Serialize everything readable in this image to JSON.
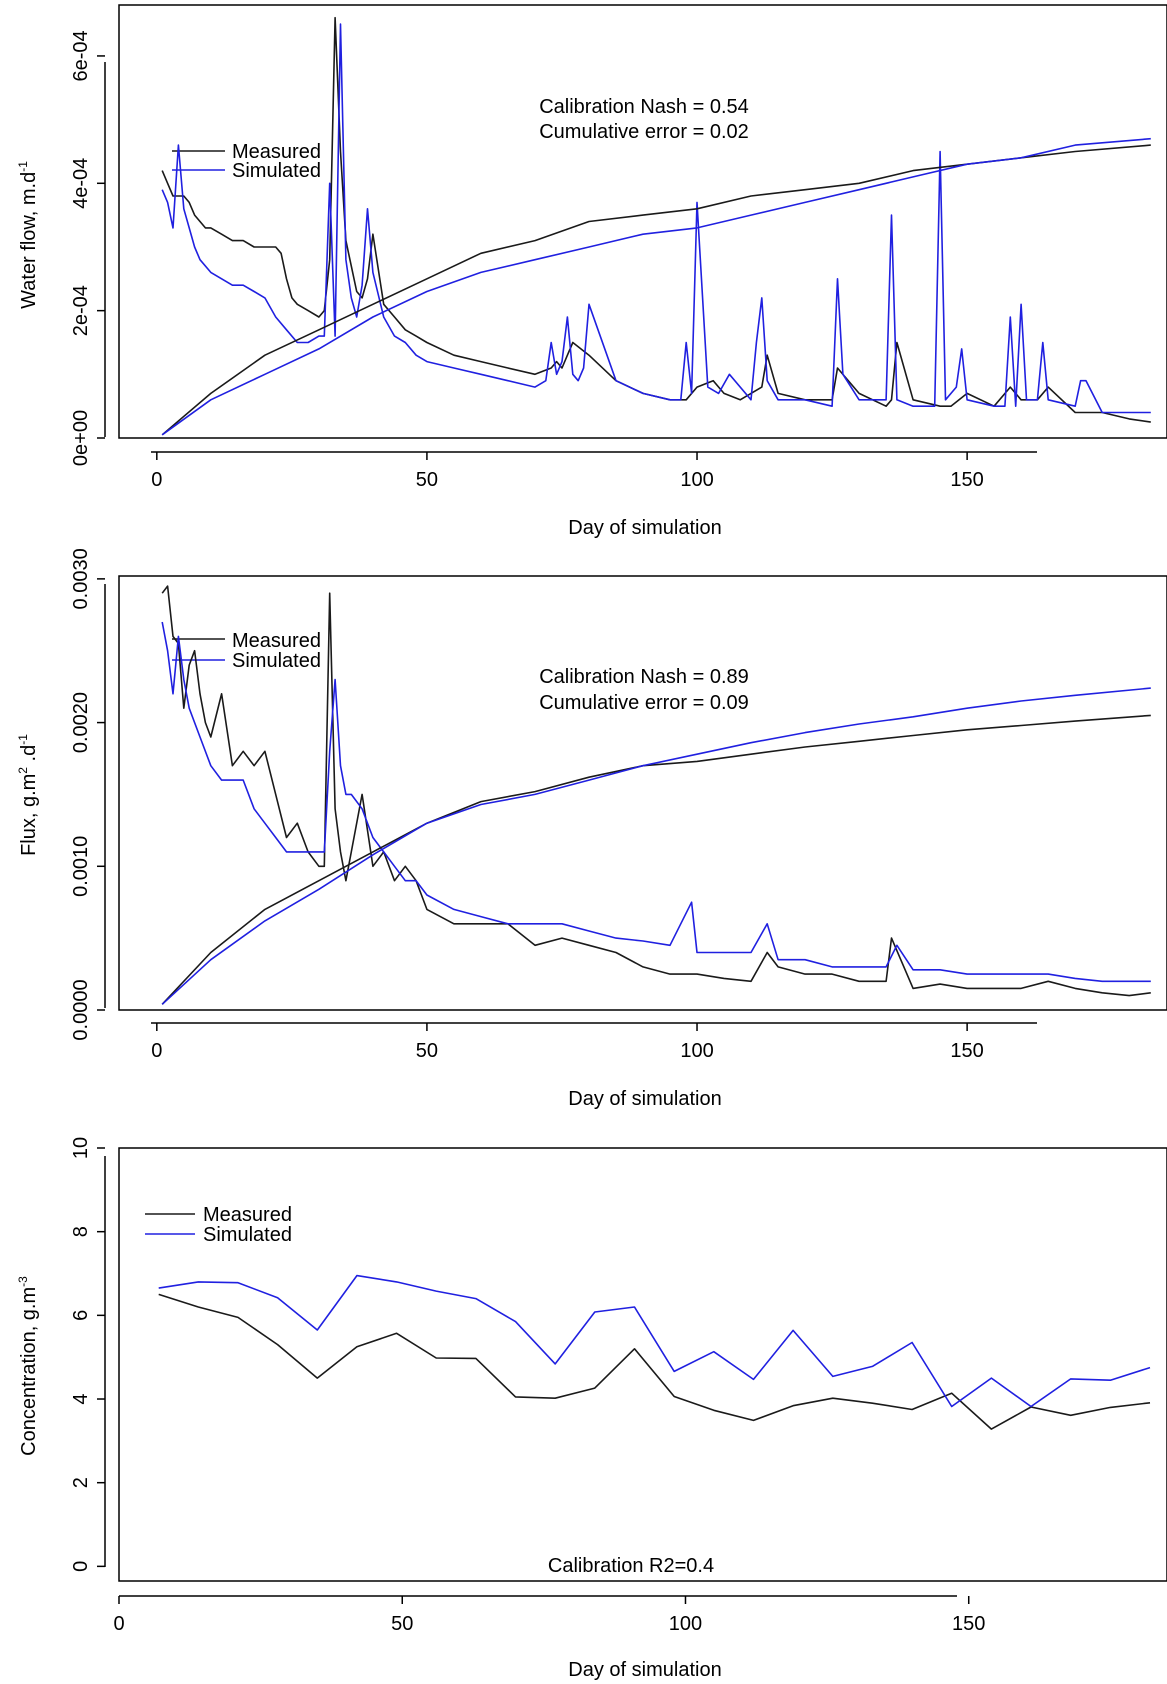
{
  "chart_data": [
    {
      "type": "line",
      "xlabel": "Day of simulation",
      "ylabel": "Water flow, m.d",
      "ylabel_sup": "-1",
      "xticks": [
        "0",
        "50",
        "100",
        "150"
      ],
      "yticks": [
        "0e+00",
        "2e-04",
        "4e-04",
        "6e-04"
      ],
      "xlim": [
        -7,
        187
      ],
      "ylim": [
        0,
        0.00068
      ],
      "legend": [
        "Measured",
        "Simulated"
      ],
      "annotation": [
        "Calibration Nash = 0.54",
        "Cumulative error = 0.02"
      ],
      "colors": {
        "measured": "#1a1a1a",
        "simulated": "#2020e0"
      },
      "series": [
        {
          "name": "Measured",
          "x": [
            1,
            2,
            3,
            4,
            5,
            6,
            7,
            8,
            9,
            10,
            12,
            14,
            16,
            18,
            20,
            22,
            23,
            24,
            25,
            26,
            28,
            30,
            31,
            32,
            33,
            34,
            35,
            36,
            37,
            38,
            39,
            40,
            42,
            44,
            46,
            48,
            50,
            55,
            60,
            65,
            70,
            73,
            74,
            75,
            76,
            77,
            80,
            85,
            90,
            95,
            98,
            100,
            103,
            105,
            108,
            110,
            112,
            113,
            115,
            120,
            125,
            126,
            130,
            135,
            136,
            137,
            140,
            145,
            147,
            150,
            155,
            158,
            160,
            163,
            165,
            170,
            175,
            180,
            184
          ],
          "y": [
            0.00042,
            0.0004,
            0.00038,
            0.00038,
            0.00038,
            0.00037,
            0.00035,
            0.00034,
            0.00033,
            0.00033,
            0.00032,
            0.00031,
            0.00031,
            0.0003,
            0.0003,
            0.0003,
            0.00029,
            0.00025,
            0.00022,
            0.00021,
            0.0002,
            0.00019,
            0.0002,
            0.00028,
            0.00066,
            0.00045,
            0.00031,
            0.00027,
            0.00023,
            0.00022,
            0.00025,
            0.00032,
            0.00021,
            0.00019,
            0.00017,
            0.00016,
            0.00015,
            0.00013,
            0.00012,
            0.00011,
            0.0001,
            0.00011,
            0.00012,
            0.00011,
            0.00013,
            0.00015,
            0.00013,
            9e-05,
            7e-05,
            6e-05,
            6e-05,
            8e-05,
            9e-05,
            7e-05,
            6e-05,
            7e-05,
            8e-05,
            0.00013,
            7e-05,
            6e-05,
            6e-05,
            0.00011,
            7e-05,
            5e-05,
            6e-05,
            0.00015,
            6e-05,
            5e-05,
            5e-05,
            7e-05,
            5e-05,
            8e-05,
            6e-05,
            6e-05,
            8e-05,
            4e-05,
            4e-05,
            3e-05,
            2.5e-05
          ]
        },
        {
          "name": "Simulated",
          "x": [
            1,
            2,
            3,
            4,
            5,
            6,
            7,
            8,
            10,
            12,
            14,
            16,
            18,
            20,
            22,
            24,
            26,
            28,
            30,
            31,
            32,
            33,
            34,
            35,
            36,
            37,
            38,
            39,
            40,
            42,
            44,
            46,
            48,
            50,
            55,
            60,
            65,
            70,
            72,
            73,
            74,
            75,
            76,
            77,
            78,
            79,
            80,
            85,
            90,
            95,
            97,
            98,
            99,
            100,
            102,
            104,
            106,
            110,
            111,
            112,
            113,
            115,
            120,
            125,
            126,
            127,
            130,
            135,
            136,
            137,
            140,
            144,
            145,
            146,
            148,
            149,
            150,
            155,
            157,
            158,
            159,
            160,
            161,
            163,
            164,
            165,
            170,
            171,
            172,
            175,
            180,
            184
          ],
          "y": [
            0.00039,
            0.00037,
            0.00033,
            0.00046,
            0.00036,
            0.00033,
            0.0003,
            0.00028,
            0.00026,
            0.00025,
            0.00024,
            0.00024,
            0.00023,
            0.00022,
            0.00019,
            0.00017,
            0.00015,
            0.00015,
            0.00016,
            0.00016,
            0.0004,
            0.00016,
            0.00065,
            0.00028,
            0.00022,
            0.00019,
            0.00024,
            0.00036,
            0.00026,
            0.00019,
            0.00016,
            0.00015,
            0.00013,
            0.00012,
            0.00011,
            0.0001,
            9e-05,
            8e-05,
            9e-05,
            0.00015,
            0.0001,
            0.00012,
            0.00019,
            0.0001,
            9e-05,
            0.00011,
            0.00021,
            9e-05,
            7e-05,
            6e-05,
            6e-05,
            0.00015,
            7e-05,
            0.00037,
            8e-05,
            7e-05,
            0.0001,
            6e-05,
            0.00015,
            0.00022,
            9e-05,
            6e-05,
            6e-05,
            5e-05,
            0.00025,
            0.0001,
            6e-05,
            6e-05,
            0.00035,
            6e-05,
            5e-05,
            5e-05,
            0.00045,
            6e-05,
            8e-05,
            0.00014,
            6e-05,
            5e-05,
            5e-05,
            0.00019,
            5e-05,
            0.00021,
            6e-05,
            6e-05,
            0.00015,
            6e-05,
            5e-05,
            9e-05,
            9e-05,
            4e-05,
            4e-05,
            4e-05
          ]
        },
        {
          "name": "Measured cumulative",
          "x": [
            1,
            10,
            20,
            30,
            40,
            50,
            60,
            70,
            80,
            90,
            100,
            110,
            120,
            130,
            140,
            150,
            160,
            170,
            184
          ],
          "y": [
            5e-06,
            7e-05,
            0.00013,
            0.00017,
            0.00021,
            0.00025,
            0.00029,
            0.00031,
            0.00034,
            0.00035,
            0.00036,
            0.00038,
            0.00039,
            0.0004,
            0.00042,
            0.00043,
            0.00044,
            0.00045,
            0.00046
          ]
        },
        {
          "name": "Simulated cumulative",
          "x": [
            1,
            10,
            20,
            30,
            40,
            50,
            60,
            70,
            80,
            90,
            100,
            110,
            120,
            130,
            140,
            150,
            160,
            170,
            184
          ],
          "y": [
            5e-06,
            6e-05,
            0.0001,
            0.00014,
            0.00019,
            0.00023,
            0.00026,
            0.00028,
            0.0003,
            0.00032,
            0.00033,
            0.00035,
            0.00037,
            0.00039,
            0.00041,
            0.00043,
            0.00044,
            0.00046,
            0.00047
          ]
        }
      ]
    },
    {
      "type": "line",
      "xlabel": "Day of simulation",
      "ylabel": "Flux, g.m",
      "ylabel_sup": "2",
      "ylabel_mid": " .d",
      "ylabel_sup2": "-1",
      "xticks": [
        "0",
        "50",
        "100",
        "150"
      ],
      "yticks": [
        "0.0000",
        "0.0010",
        "0.0020",
        "0.0030"
      ],
      "xlim": [
        -7,
        187
      ],
      "ylim": [
        0,
        0.00302
      ],
      "legend": [
        "Measured",
        "Simulated"
      ],
      "annotation": [
        "Calibration Nash = 0.89",
        "Cumulative error = 0.09"
      ],
      "colors": {
        "measured": "#1a1a1a",
        "simulated": "#2020e0"
      },
      "series": [
        {
          "name": "Measured",
          "x": [
            1,
            2,
            3,
            4,
            5,
            6,
            7,
            8,
            9,
            10,
            12,
            14,
            16,
            18,
            20,
            22,
            24,
            26,
            28,
            30,
            31,
            32,
            33,
            34,
            35,
            36,
            38,
            40,
            42,
            44,
            46,
            48,
            50,
            55,
            60,
            65,
            70,
            75,
            80,
            85,
            90,
            95,
            100,
            105,
            110,
            113,
            115,
            120,
            125,
            130,
            135,
            136,
            140,
            145,
            150,
            155,
            160,
            165,
            170,
            175,
            180,
            184
          ],
          "y": [
            0.0029,
            0.00295,
            0.0026,
            0.00255,
            0.0021,
            0.0024,
            0.0025,
            0.0022,
            0.002,
            0.0019,
            0.0022,
            0.0017,
            0.0018,
            0.0017,
            0.0018,
            0.0015,
            0.0012,
            0.0013,
            0.0011,
            0.001,
            0.001,
            0.0029,
            0.0014,
            0.0011,
            0.0009,
            0.0011,
            0.0015,
            0.001,
            0.0011,
            0.0009,
            0.001,
            0.0009,
            0.0007,
            0.0006,
            0.0006,
            0.0006,
            0.00045,
            0.0005,
            0.00045,
            0.0004,
            0.0003,
            0.00025,
            0.00025,
            0.00022,
            0.0002,
            0.0004,
            0.0003,
            0.00025,
            0.00025,
            0.0002,
            0.0002,
            0.0005,
            0.00015,
            0.00018,
            0.00015,
            0.00015,
            0.00015,
            0.0002,
            0.00015,
            0.00012,
            0.0001,
            0.00012
          ]
        },
        {
          "name": "Simulated",
          "x": [
            1,
            2,
            3,
            4,
            5,
            6,
            8,
            10,
            12,
            14,
            16,
            18,
            20,
            22,
            24,
            26,
            28,
            30,
            31,
            32,
            33,
            34,
            35,
            36,
            38,
            40,
            42,
            44,
            46,
            48,
            50,
            55,
            60,
            65,
            70,
            75,
            80,
            85,
            90,
            95,
            99,
            100,
            105,
            110,
            113,
            115,
            120,
            125,
            130,
            135,
            137,
            140,
            145,
            150,
            155,
            160,
            165,
            170,
            175,
            180,
            184
          ],
          "y": [
            0.0027,
            0.0025,
            0.0022,
            0.0026,
            0.0023,
            0.0021,
            0.0019,
            0.0017,
            0.0016,
            0.0016,
            0.0016,
            0.0014,
            0.0013,
            0.0012,
            0.0011,
            0.0011,
            0.0011,
            0.0011,
            0.0011,
            0.0018,
            0.0023,
            0.0017,
            0.0015,
            0.0015,
            0.0014,
            0.0012,
            0.0011,
            0.001,
            0.0009,
            0.0009,
            0.0008,
            0.0007,
            0.00065,
            0.0006,
            0.0006,
            0.0006,
            0.00055,
            0.0005,
            0.00048,
            0.00045,
            0.00075,
            0.0004,
            0.0004,
            0.0004,
            0.0006,
            0.00035,
            0.00035,
            0.0003,
            0.0003,
            0.0003,
            0.00045,
            0.00028,
            0.00028,
            0.00025,
            0.00025,
            0.00025,
            0.00025,
            0.00022,
            0.0002,
            0.0002,
            0.0002
          ]
        },
        {
          "name": "Measured cumulative",
          "x": [
            1,
            10,
            20,
            30,
            40,
            50,
            60,
            70,
            80,
            90,
            100,
            110,
            120,
            130,
            140,
            150,
            160,
            170,
            184
          ],
          "y": [
            4e-05,
            0.0004,
            0.0007,
            0.0009,
            0.0011,
            0.0013,
            0.00145,
            0.00152,
            0.00162,
            0.0017,
            0.00173,
            0.00178,
            0.00183,
            0.00187,
            0.00191,
            0.00195,
            0.00198,
            0.00201,
            0.00205
          ]
        },
        {
          "name": "Simulated cumulative",
          "x": [
            1,
            10,
            20,
            30,
            40,
            50,
            60,
            70,
            80,
            90,
            100,
            110,
            120,
            130,
            140,
            150,
            160,
            170,
            184
          ],
          "y": [
            4e-05,
            0.00035,
            0.00062,
            0.00084,
            0.00108,
            0.0013,
            0.00143,
            0.0015,
            0.0016,
            0.0017,
            0.00178,
            0.00186,
            0.00193,
            0.00199,
            0.00204,
            0.0021,
            0.00215,
            0.00219,
            0.00224
          ]
        }
      ]
    },
    {
      "type": "line",
      "xlabel": "Day of simulation",
      "ylabel": "Concentration, g.m",
      "ylabel_sup": "-3",
      "xticks": [
        "0",
        "50",
        "100",
        "150"
      ],
      "yticks": [
        "0",
        "2",
        "4",
        "6",
        "8",
        "10"
      ],
      "xlim": [
        0,
        185
      ],
      "ylim": [
        -0.35,
        10
      ],
      "legend": [
        "Measured",
        "Simulated"
      ],
      "annotation": [
        "Calibration R2=0.4"
      ],
      "colors": {
        "measured": "#1a1a1a",
        "simulated": "#2020e0"
      },
      "series": [
        {
          "name": "Measured",
          "x": [
            7,
            14,
            21,
            28,
            35,
            42,
            49,
            56,
            63,
            70,
            77,
            84,
            91,
            98,
            105,
            112,
            119,
            126,
            133,
            140,
            147,
            154,
            161,
            168,
            175,
            182
          ],
          "y": [
            6.5,
            6.2,
            5.95,
            5.3,
            4.5,
            5.25,
            5.57,
            4.98,
            4.97,
            4.05,
            4.02,
            4.26,
            5.2,
            4.06,
            3.73,
            3.49,
            3.84,
            4.02,
            3.9,
            3.75,
            4.14,
            3.28,
            3.81,
            3.61,
            3.8,
            3.91
          ]
        },
        {
          "name": "Simulated",
          "x": [
            7,
            14,
            21,
            28,
            35,
            42,
            49,
            56,
            63,
            70,
            77,
            84,
            91,
            98,
            105,
            112,
            119,
            126,
            133,
            140,
            147,
            154,
            161,
            168,
            175,
            182
          ],
          "y": [
            6.65,
            6.8,
            6.78,
            6.42,
            5.65,
            6.95,
            6.8,
            6.58,
            6.4,
            5.85,
            4.84,
            6.08,
            6.2,
            4.66,
            5.13,
            4.47,
            5.64,
            4.54,
            4.78,
            5.35,
            3.82,
            4.5,
            3.82,
            4.48,
            4.45,
            4.75
          ]
        }
      ]
    }
  ]
}
